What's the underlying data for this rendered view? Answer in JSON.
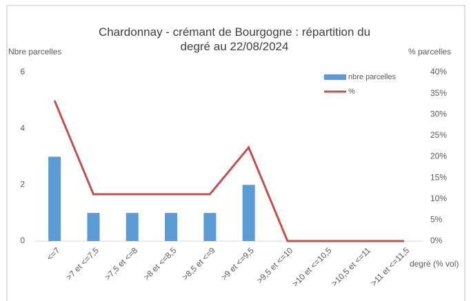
{
  "chart_data": {
    "type": "combo",
    "title": "Chardonnay - crémant de Bourgogne : répartition du degré au 22/08/2024",
    "y_label": "Nbre parcelles",
    "y2_label": "% parcelles",
    "x_label": "degré (% vol)",
    "categories": [
      "<=7",
      ">7 et <=7,5",
      ">7,5 et <=8",
      ">8 et <=8,5",
      ">8,5 et <=9",
      ">9 et <=9,5",
      ">9,5 et <=10",
      ">10 et <=10,5",
      ">10,5 et <=11",
      ">11 et <=11,5"
    ],
    "series": [
      {
        "name": "nbre parcelles",
        "type": "bar",
        "color": "#5b9bd5",
        "values": [
          3,
          1,
          1,
          1,
          1,
          2,
          0,
          0,
          0,
          0
        ]
      },
      {
        "name": "%",
        "type": "line",
        "axis": "y2",
        "color": "#c0504d",
        "values": [
          33.3,
          11.1,
          11.1,
          11.1,
          11.1,
          22.2,
          0,
          0,
          0,
          0
        ]
      }
    ],
    "ylim": [
      0,
      6
    ],
    "yticks": [
      0,
      2,
      4,
      6
    ],
    "y2lim": [
      0,
      40
    ],
    "y2ticks": [
      {
        "value": 0,
        "label": "0%"
      },
      {
        "value": 5,
        "label": "5%"
      },
      {
        "value": 10,
        "label": "10%"
      },
      {
        "value": 15,
        "label": "15%"
      },
      {
        "value": 20,
        "label": "20%"
      },
      {
        "value": 25,
        "label": "25%"
      },
      {
        "value": 30,
        "label": "30%"
      },
      {
        "value": 35,
        "label": "35%"
      },
      {
        "value": 40,
        "label": "40%"
      }
    ],
    "legend": "top-right"
  }
}
